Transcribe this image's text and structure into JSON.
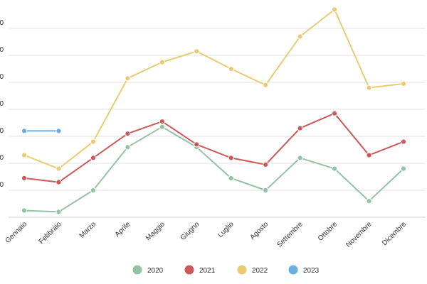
{
  "chart_data": {
    "type": "line",
    "title": "",
    "xlabel": "",
    "ylabel": "",
    "categories": [
      "Gennaio",
      "Febbraio",
      "Marzo",
      "Aprile",
      "Maggio",
      "Giugno",
      "Luglio",
      "Agosto",
      "Settembre",
      "Ottobre",
      "Novembre",
      "Dicembre"
    ],
    "y_tick_labels": [
      "0",
      "0",
      "0",
      "0",
      "0",
      "0",
      "0"
    ],
    "ylim": [
      0,
      8
    ],
    "series": [
      {
        "name": "2020",
        "color": "#93c3a4",
        "values": [
          0.25,
          0.2,
          1.0,
          2.6,
          3.35,
          2.6,
          1.45,
          1.0,
          2.2,
          1.8,
          0.6,
          1.8
        ]
      },
      {
        "name": "2021",
        "color": "#cc5959",
        "values": [
          1.45,
          1.3,
          2.2,
          3.1,
          3.55,
          2.7,
          2.2,
          1.95,
          3.3,
          3.85,
          2.3,
          2.8
        ]
      },
      {
        "name": "2022",
        "color": "#ebcb72",
        "values": [
          2.3,
          1.8,
          2.8,
          5.15,
          5.75,
          6.15,
          5.5,
          4.9,
          6.7,
          7.7,
          4.8,
          4.95
        ]
      },
      {
        "name": "2023",
        "color": "#6aaee0",
        "values": [
          3.2,
          3.2,
          null,
          null,
          null,
          null,
          null,
          null,
          null,
          null,
          null,
          null
        ]
      }
    ],
    "legend_position": "bottom",
    "grid": true
  }
}
